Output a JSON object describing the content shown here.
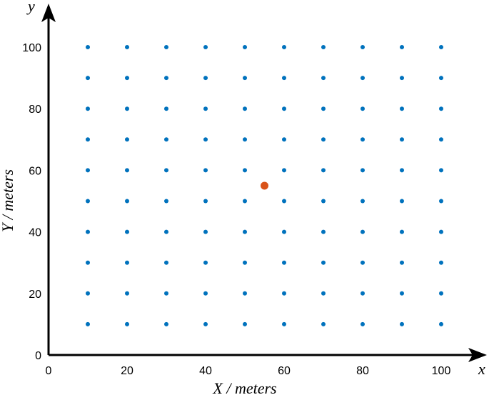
{
  "chart_data": {
    "type": "scatter",
    "xlabel": "X / meters",
    "ylabel": "Y / meters",
    "x_arrow_label": "x",
    "y_arrow_label": "y",
    "xlim": [
      0,
      108
    ],
    "ylim": [
      0,
      108
    ],
    "xticks": [
      0,
      20,
      40,
      60,
      80,
      100
    ],
    "yticks": [
      0,
      20,
      40,
      60,
      80,
      100
    ],
    "grid": false,
    "series": [
      {
        "color": "#0072BD",
        "points": [
          [
            10,
            10
          ],
          [
            20,
            10
          ],
          [
            30,
            10
          ],
          [
            40,
            10
          ],
          [
            50,
            10
          ],
          [
            60,
            10
          ],
          [
            70,
            10
          ],
          [
            80,
            10
          ],
          [
            90,
            10
          ],
          [
            100,
            10
          ],
          [
            10,
            20
          ],
          [
            20,
            20
          ],
          [
            30,
            20
          ],
          [
            40,
            20
          ],
          [
            50,
            20
          ],
          [
            60,
            20
          ],
          [
            70,
            20
          ],
          [
            80,
            20
          ],
          [
            90,
            20
          ],
          [
            100,
            20
          ],
          [
            10,
            30
          ],
          [
            20,
            30
          ],
          [
            30,
            30
          ],
          [
            40,
            30
          ],
          [
            50,
            30
          ],
          [
            60,
            30
          ],
          [
            70,
            30
          ],
          [
            80,
            30
          ],
          [
            90,
            30
          ],
          [
            100,
            30
          ],
          [
            10,
            40
          ],
          [
            20,
            40
          ],
          [
            30,
            40
          ],
          [
            40,
            40
          ],
          [
            50,
            40
          ],
          [
            60,
            40
          ],
          [
            70,
            40
          ],
          [
            80,
            40
          ],
          [
            90,
            40
          ],
          [
            100,
            40
          ],
          [
            10,
            50
          ],
          [
            20,
            50
          ],
          [
            30,
            50
          ],
          [
            40,
            50
          ],
          [
            50,
            50
          ],
          [
            60,
            50
          ],
          [
            70,
            50
          ],
          [
            80,
            50
          ],
          [
            90,
            50
          ],
          [
            100,
            50
          ],
          [
            10,
            60
          ],
          [
            20,
            60
          ],
          [
            30,
            60
          ],
          [
            40,
            60
          ],
          [
            50,
            60
          ],
          [
            60,
            60
          ],
          [
            70,
            60
          ],
          [
            80,
            60
          ],
          [
            90,
            60
          ],
          [
            100,
            60
          ],
          [
            10,
            70
          ],
          [
            20,
            70
          ],
          [
            30,
            70
          ],
          [
            40,
            70
          ],
          [
            50,
            70
          ],
          [
            60,
            70
          ],
          [
            70,
            70
          ],
          [
            80,
            70
          ],
          [
            90,
            70
          ],
          [
            100,
            70
          ],
          [
            10,
            80
          ],
          [
            20,
            80
          ],
          [
            30,
            80
          ],
          [
            40,
            80
          ],
          [
            50,
            80
          ],
          [
            60,
            80
          ],
          [
            70,
            80
          ],
          [
            80,
            80
          ],
          [
            90,
            80
          ],
          [
            100,
            80
          ],
          [
            10,
            90
          ],
          [
            20,
            90
          ],
          [
            30,
            90
          ],
          [
            40,
            90
          ],
          [
            50,
            90
          ],
          [
            60,
            90
          ],
          [
            70,
            90
          ],
          [
            80,
            90
          ],
          [
            90,
            90
          ],
          [
            100,
            90
          ],
          [
            10,
            100
          ],
          [
            20,
            100
          ],
          [
            30,
            100
          ],
          [
            40,
            100
          ],
          [
            50,
            100
          ],
          [
            60,
            100
          ],
          [
            70,
            100
          ],
          [
            80,
            100
          ],
          [
            90,
            100
          ],
          [
            100,
            100
          ]
        ]
      },
      {
        "color": "#D95319",
        "points": [
          [
            55,
            55
          ]
        ]
      }
    ]
  }
}
